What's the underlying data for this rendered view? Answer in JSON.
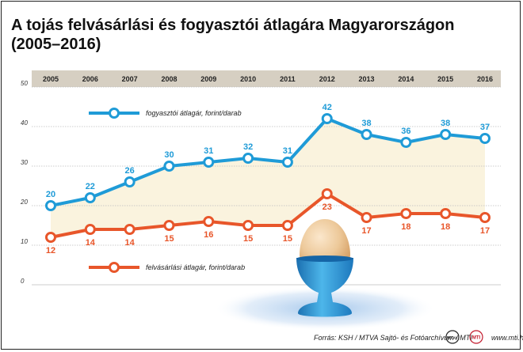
{
  "title_line1": "A tojás felvásárlási és fogyasztói átlagára Magyarországon",
  "title_line2": "(2005–2016)",
  "footer": {
    "source": "Forrás: KSH / MTVA Sajtó- és Fotóarchívum / MTI",
    "url": "www.mti.hu",
    "logo1": "MTVA",
    "logo2": "MTI"
  },
  "colors": {
    "consumer": "#1f9bd7",
    "purchase": "#e8562a",
    "header_band": "#d6cfc2",
    "fill_band": "#faf3de"
  },
  "chart_data": {
    "type": "line",
    "title": "A tojás felvásárlási és fogyasztói átlagára Magyarországon (2005–2016)",
    "categories": [
      "2005",
      "2006",
      "2007",
      "2008",
      "2009",
      "2010",
      "2011",
      "2012",
      "2013",
      "2014",
      "2015",
      "2016"
    ],
    "ylim": [
      0,
      50
    ],
    "yticks": [
      0,
      10,
      20,
      30,
      40,
      50
    ],
    "grid": true,
    "series": [
      {
        "name": "fogyasztói átlagár, forint/darab",
        "values": [
          20,
          22,
          26,
          30,
          31,
          32,
          31,
          42,
          38,
          36,
          38,
          37
        ],
        "color": "#1f9bd7"
      },
      {
        "name": "felvásárlási átlagár, forint/darab",
        "values": [
          12,
          14,
          14,
          15,
          16,
          15,
          15,
          23,
          17,
          18,
          18,
          17
        ],
        "color": "#e8562a"
      }
    ],
    "legend_placement": "inside"
  }
}
